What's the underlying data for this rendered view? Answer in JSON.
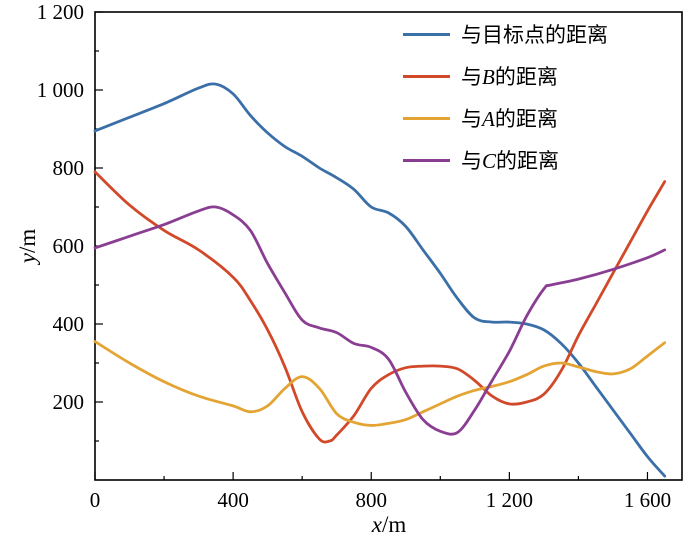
{
  "figure": {
    "background": "#ffffff"
  },
  "axes": {
    "xlabel": {
      "var": "x",
      "rest": "/m"
    },
    "ylabel": {
      "var": "y",
      "rest": "/m"
    }
  },
  "chart_data": {
    "type": "line",
    "title": "",
    "xlabel": "x/m",
    "ylabel": "y/m",
    "xlim": [
      0,
      1700
    ],
    "ylim": [
      0,
      1200
    ],
    "grid": false,
    "legend_position": "top-right",
    "x_ticks": [
      {
        "v": 0,
        "label": "0"
      },
      {
        "v": 400,
        "label": "400"
      },
      {
        "v": 800,
        "label": "800"
      },
      {
        "v": 1200,
        "label": "1 200"
      },
      {
        "v": 1600,
        "label": "1 600"
      }
    ],
    "x_minor_ticks": [
      200,
      600,
      1000,
      1400
    ],
    "y_ticks": [
      {
        "v": 200,
        "label": "200"
      },
      {
        "v": 400,
        "label": "400"
      },
      {
        "v": 600,
        "label": "600"
      },
      {
        "v": 800,
        "label": "800"
      },
      {
        "v": 1000,
        "label": "1 000"
      },
      {
        "v": 1200,
        "label": "1 200"
      }
    ],
    "y_minor_ticks": [
      100,
      300,
      500,
      700,
      900,
      1100
    ],
    "series": [
      {
        "label": "与目标点的距离",
        "label_pre": "与目标点的距离",
        "label_var": "",
        "label_post": "",
        "color": "#3B6FA8",
        "x": [
          0,
          100,
          200,
          300,
          350,
          400,
          450,
          500,
          550,
          600,
          650,
          700,
          750,
          800,
          850,
          900,
          950,
          1000,
          1050,
          1100,
          1150,
          1200,
          1250,
          1300,
          1350,
          1400,
          1450,
          1500,
          1550,
          1600,
          1650
        ],
        "y": [
          895,
          930,
          965,
          1005,
          1015,
          990,
          935,
          890,
          855,
          830,
          800,
          775,
          745,
          700,
          685,
          650,
          590,
          530,
          465,
          415,
          405,
          405,
          400,
          385,
          350,
          300,
          240,
          180,
          120,
          60,
          10
        ]
      },
      {
        "label": "与B的距离",
        "label_pre": "与",
        "label_var": "B",
        "label_post": "的距离",
        "color": "#D2492A",
        "x": [
          0,
          100,
          200,
          300,
          400,
          450,
          500,
          550,
          600,
          650,
          680,
          700,
          750,
          800,
          850,
          900,
          950,
          1000,
          1050,
          1100,
          1150,
          1200,
          1250,
          1300,
          1350,
          1400,
          1450,
          1500,
          1550,
          1600,
          1650
        ],
        "y": [
          790,
          705,
          640,
          590,
          520,
          460,
          385,
          290,
          175,
          105,
          100,
          115,
          165,
          235,
          270,
          288,
          292,
          292,
          285,
          255,
          215,
          195,
          200,
          220,
          280,
          370,
          450,
          530,
          610,
          690,
          765
        ]
      },
      {
        "label": "与A的距离",
        "label_pre": "与",
        "label_var": "A",
        "label_post": "的距离",
        "color": "#E3A434",
        "x": [
          0,
          100,
          200,
          300,
          400,
          450,
          500,
          550,
          600,
          650,
          700,
          750,
          800,
          850,
          900,
          950,
          1000,
          1050,
          1100,
          1150,
          1200,
          1250,
          1300,
          1350,
          1400,
          1450,
          1500,
          1550,
          1600,
          1650
        ],
        "y": [
          355,
          300,
          252,
          215,
          190,
          175,
          190,
          235,
          265,
          235,
          170,
          148,
          140,
          145,
          155,
          175,
          195,
          215,
          230,
          240,
          252,
          270,
          292,
          300,
          290,
          278,
          272,
          285,
          318,
          352
        ]
      },
      {
        "label": "与C的距离",
        "label_pre": "与",
        "label_var": "C",
        "label_post": "的距离",
        "color": "#8A3E92",
        "x": [
          0,
          100,
          200,
          300,
          350,
          400,
          450,
          500,
          550,
          600,
          650,
          700,
          750,
          800,
          850,
          900,
          950,
          1000,
          1050,
          1100,
          1150,
          1200,
          1250,
          1300,
          1320,
          1400,
          1500,
          1600,
          1650
        ],
        "y": [
          595,
          625,
          655,
          690,
          700,
          680,
          640,
          555,
          480,
          410,
          390,
          378,
          350,
          340,
          310,
          225,
          155,
          125,
          122,
          180,
          255,
          330,
          420,
          490,
          500,
          515,
          540,
          570,
          590
        ]
      }
    ]
  }
}
